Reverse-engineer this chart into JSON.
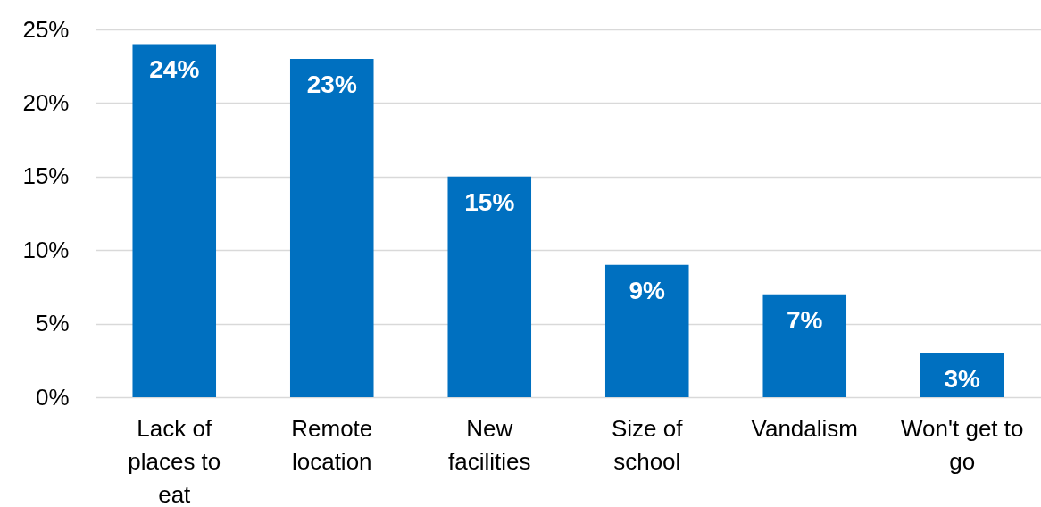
{
  "chart_data": {
    "type": "bar",
    "categories": [
      "Lack of places to eat",
      "Remote location",
      "New facilities",
      "Size of school",
      "Vandalism",
      "Won't get to go"
    ],
    "values": [
      24,
      23,
      15,
      9,
      7,
      3
    ],
    "value_labels": [
      "24%",
      "23%",
      "15%",
      "9%",
      "7%",
      "3%"
    ],
    "color": "#0070c0",
    "ylim": [
      0,
      25
    ],
    "yticks": [
      {
        "value": 0,
        "label": "0%"
      },
      {
        "value": 5,
        "label": "5%"
      },
      {
        "value": 10,
        "label": "10%"
      },
      {
        "value": 15,
        "label": "15%"
      },
      {
        "value": 20,
        "label": "20%"
      },
      {
        "value": 25,
        "label": "25%"
      }
    ],
    "grid": "y"
  }
}
